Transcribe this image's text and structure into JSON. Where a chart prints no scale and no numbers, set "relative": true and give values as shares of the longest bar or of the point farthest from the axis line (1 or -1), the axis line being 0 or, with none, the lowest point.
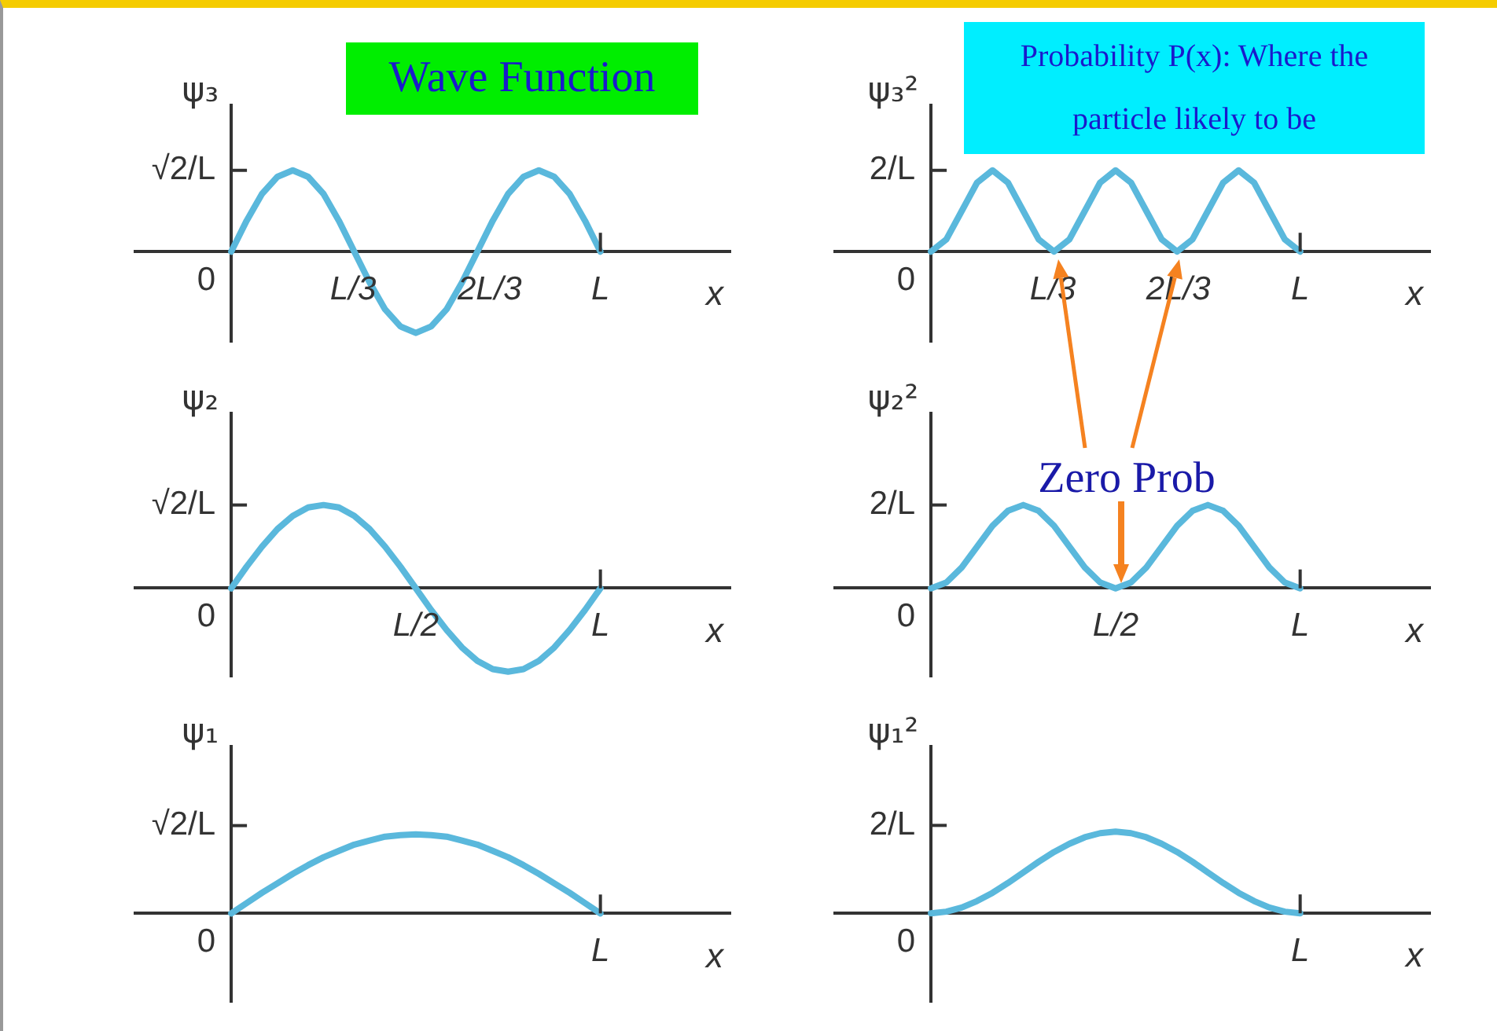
{
  "chart_data": [
    {
      "type": "line",
      "relative": true,
      "title": "Wave Function",
      "ylabel": "ψ₃",
      "xlabel": "x",
      "color": "#5ab8dc",
      "grid": false,
      "annotations": [
        "0",
        "√2/L",
        "L/3",
        "2L/3",
        "L"
      ],
      "categories": [
        null,
        null,
        null,
        null,
        null,
        null,
        null,
        null,
        null,
        null,
        null,
        null,
        null,
        null,
        null,
        null,
        null,
        null,
        null,
        null,
        null,
        null,
        null,
        null,
        null
      ],
      "values": [
        0,
        0.38,
        0.71,
        0.92,
        1,
        0.92,
        0.71,
        0.38,
        0,
        -0.38,
        -0.71,
        -0.92,
        -1,
        -0.92,
        -0.71,
        -0.38,
        0,
        0.38,
        0.71,
        0.92,
        1,
        0.92,
        0.71,
        0.38,
        0
      ]
    },
    {
      "type": "line",
      "relative": true,
      "title": "Probability P(x): Where the particle likely to be",
      "ylabel": "ψ₃²",
      "xlabel": "x",
      "color": "#5ab8dc",
      "grid": false,
      "annotations": [
        "0",
        "2/L",
        "L/3",
        "2L/3",
        "L"
      ],
      "categories": [
        null,
        null,
        null,
        null,
        null,
        null,
        null,
        null,
        null,
        null,
        null,
        null,
        null,
        null,
        null,
        null,
        null,
        null,
        null,
        null,
        null,
        null,
        null,
        null,
        null
      ],
      "values": [
        0,
        0.15,
        0.5,
        0.85,
        1,
        0.85,
        0.5,
        0.15,
        0,
        0.15,
        0.5,
        0.85,
        1,
        0.85,
        0.5,
        0.15,
        0,
        0.15,
        0.5,
        0.85,
        1,
        0.85,
        0.5,
        0.15,
        0
      ]
    },
    {
      "type": "line",
      "relative": true,
      "ylabel": "ψ₂",
      "xlabel": "x",
      "color": "#5ab8dc",
      "grid": false,
      "annotations": [
        "0",
        "√2/L",
        "L/2",
        "L"
      ],
      "categories": [
        null,
        null,
        null,
        null,
        null,
        null,
        null,
        null,
        null,
        null,
        null,
        null,
        null,
        null,
        null,
        null,
        null,
        null,
        null,
        null,
        null,
        null,
        null,
        null,
        null
      ],
      "values": [
        0,
        0.26,
        0.5,
        0.71,
        0.87,
        0.97,
        1,
        0.97,
        0.87,
        0.71,
        0.5,
        0.26,
        0,
        -0.26,
        -0.5,
        -0.71,
        -0.87,
        -0.97,
        -1,
        -0.97,
        -0.87,
        -0.71,
        -0.5,
        -0.26,
        0
      ]
    },
    {
      "type": "line",
      "relative": true,
      "ylabel": "ψ₂²",
      "xlabel": "x",
      "color": "#5ab8dc",
      "grid": false,
      "annotations": [
        "0",
        "2/L",
        "L/2",
        "L",
        "Zero Prob"
      ],
      "categories": [
        null,
        null,
        null,
        null,
        null,
        null,
        null,
        null,
        null,
        null,
        null,
        null,
        null,
        null,
        null,
        null,
        null,
        null,
        null,
        null,
        null,
        null,
        null,
        null,
        null
      ],
      "values": [
        0,
        0.07,
        0.25,
        0.5,
        0.75,
        0.93,
        1,
        0.93,
        0.75,
        0.5,
        0.25,
        0.07,
        0,
        0.07,
        0.25,
        0.5,
        0.75,
        0.93,
        1,
        0.93,
        0.75,
        0.5,
        0.25,
        0.07,
        0
      ]
    },
    {
      "type": "line",
      "relative": true,
      "ylabel": "ψ₁",
      "xlabel": "x",
      "color": "#5ab8dc",
      "grid": false,
      "annotations": [
        "0",
        "√2/L",
        "L"
      ],
      "categories": [
        null,
        null,
        null,
        null,
        null,
        null,
        null,
        null,
        null,
        null,
        null,
        null,
        null,
        null,
        null,
        null,
        null,
        null,
        null,
        null,
        null,
        null,
        null,
        null,
        null
      ],
      "values": [
        0,
        0.13,
        0.26,
        0.38,
        0.5,
        0.61,
        0.71,
        0.79,
        0.87,
        0.92,
        0.97,
        0.99,
        1,
        0.99,
        0.97,
        0.92,
        0.87,
        0.79,
        0.71,
        0.61,
        0.5,
        0.38,
        0.26,
        0.13,
        0
      ]
    },
    {
      "type": "line",
      "relative": true,
      "ylabel": "ψ₁²",
      "xlabel": "x",
      "color": "#5ab8dc",
      "grid": false,
      "annotations": [
        "0",
        "2/L",
        "L"
      ],
      "categories": [
        null,
        null,
        null,
        null,
        null,
        null,
        null,
        null,
        null,
        null,
        null,
        null,
        null,
        null,
        null,
        null,
        null,
        null,
        null,
        null,
        null,
        null,
        null,
        null,
        null
      ],
      "values": [
        0,
        0.02,
        0.07,
        0.15,
        0.25,
        0.37,
        0.5,
        0.63,
        0.75,
        0.85,
        0.93,
        0.98,
        1,
        0.98,
        0.93,
        0.85,
        0.75,
        0.63,
        0.5,
        0.37,
        0.25,
        0.15,
        0.07,
        0.02,
        0
      ]
    }
  ]
}
